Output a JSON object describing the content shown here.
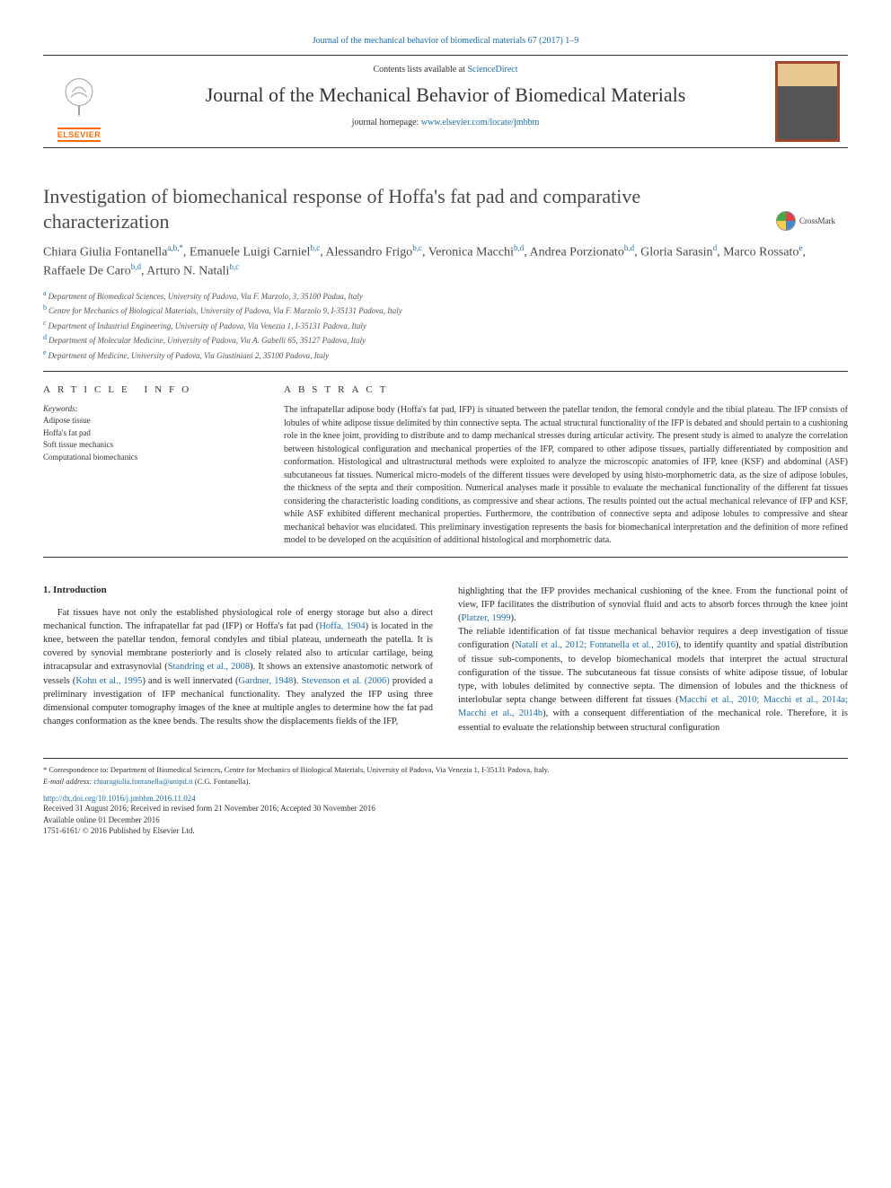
{
  "header": {
    "top_link": "Journal of the mechanical behavior of biomedical materials 67 (2017) 1–9",
    "contents_prefix": "Contents lists available at ",
    "contents_link": "ScienceDirect",
    "journal_name": "Journal of the Mechanical Behavior of Biomedical Materials",
    "homepage_prefix": "journal homepage: ",
    "homepage_url": "www.elsevier.com/locate/jmbbm",
    "publisher_logo": "ELSEVIER",
    "crossmark": "CrossMark"
  },
  "article": {
    "title": "Investigation of biomechanical response of Hoffa's fat pad and comparative characterization",
    "authors_html": "Chiara Giulia Fontanella|a,b,*|, Emanuele Luigi Carniel|b,c|, Alessandro Frigo|b,c|, Veronica Macchi|b,d|, Andrea Porzionato|b,d|, Gloria Sarasin|d|, Marco Rossato|e|, Raffaele De Caro|b,d|, Arturo N. Natali|b,c|",
    "affiliations": [
      {
        "label": "a",
        "text": "Department of Biomedical Sciences, University of Padova, Via F. Marzolo, 3, 35100 Padua, Italy"
      },
      {
        "label": "b",
        "text": "Centre for Mechanics of Biological Materials, University of Padova, Via F. Marzolo 9, I-35131 Padova, Italy"
      },
      {
        "label": "c",
        "text": "Department of Industrial Engineering, University of Padova, Via Venezia 1, I-35131 Padova, Italy"
      },
      {
        "label": "d",
        "text": "Department of Molecular Medicine, University of Padova, Via A. Gabelli 65, 35127 Padova, Italy"
      },
      {
        "label": "e",
        "text": "Department of Medicine, University of Padova, Via Giustiniani 2, 35100 Padova, Italy"
      }
    ]
  },
  "info": {
    "section_label": "ARTICLE INFO",
    "keywords_label": "Keywords:",
    "keywords": [
      "Adipose tissue",
      "Hoffa's fat pad",
      "Soft tissue mechanics",
      "Computational biomechanics"
    ]
  },
  "abstract": {
    "section_label": "ABSTRACT",
    "text": "The infrapatellar adipose body (Hoffa's fat pad, IFP) is situated between the patellar tendon, the femoral condyle and the tibial plateau. The IFP consists of lobules of white adipose tissue delimited by thin connective septa. The actual structural functionality of the IFP is debated and should pertain to a cushioning role in the knee joint, providing to distribute and to damp mechanical stresses during articular activity. The present study is aimed to analyze the correlation between histological configuration and mechanical properties of the IFP, compared to other adipose tissues, partially differentiated by composition and conformation. Histological and ultrastructural methods were exploited to analyze the microscopic anatomies of IFP, knee (KSF) and abdominal (ASF) subcutaneous fat tissues. Numerical micro-models of the different tissues were developed by using histo-morphometric data, as the size of adipose lobules, the thickness of the septa and their composition. Numerical analyses made it possible to evaluate the mechanical functionality of the different fat tissues considering the characteristic loading conditions, as compressive and shear actions. The results pointed out the actual mechanical relevance of IFP and KSF, while ASF exhibited different mechanical properties. Furthermore, the contribution of connective septa and adipose lobules to compressive and shear mechanical behavior was elucidated. This preliminary investigation represents the basis for biomechanical interpretation and the definition of more refined model to be developed on the acquisition of additional histological and morphometric data."
  },
  "body": {
    "section_number": "1.",
    "section_title": "Introduction",
    "col1": "Fat tissues have not only the established physiological role of energy storage but also a direct mechanical function. The infrapatellar fat pad (IFP) or Hoffa's fat pad (|Hoffa, 1904|) is located in the knee, between the patellar tendon, femoral condyles and tibial plateau, underneath the patella. It is covered by synovial membrane posteriorly and is closely related also to articular cartilage, being intracapsular and extrasynovial (|Standring et al., 2008|). It shows an extensive anastomotic network of vessels (|Kohn et al., 1995|) and is well innervated (|Gardner, 1948|). |Stevenson et al. (2006)| provided a preliminary investigation of IFP mechanical functionality. They analyzed the IFP using three dimensional computer tomography images of the knee at multiple angles to determine how the fat pad changes conformation as the knee bends. The results show the displacements fields of the IFP,",
    "col2": "highlighting that the IFP provides mechanical cushioning of the knee. From the functional point of view, IFP facilitates the distribution of synovial fluid and acts to absorb forces through the knee joint (|Platzer, 1999|).\nThe reliable identification of fat tissue mechanical behavior requires a deep investigation of tissue configuration (|Natali et al., 2012; Fontanella et al., 2016|), to identify quantity and spatial distribution of tissue sub-components, to develop biomechanical models that interpret the actual structural configuration of the tissue. The subcutaneous fat tissue consists of white adipose tissue, of lobular type, with lobules delimited by connective septa. The dimension of lobules and the thickness of interlobular septa change between different fat tissues (|Macchi et al., 2010; Macchi et al., 2014a; Macchi et al., 2014b|), with a consequent differentiation of the mechanical role. Therefore, it is essential to evaluate the relationship between structural configuration"
  },
  "footer": {
    "corr_marker": "*",
    "correspondence": "Correspondence to: Department of Biomedical Sciences, Centre for Mechanics of Biological Materials, University of Padova, Via Venezia 1, I-35131 Padova, Italy.",
    "email_label": "E-mail address: ",
    "email": "chiaragiulia.fontanella@unipd.it",
    "email_suffix": " (C.G. Fontanella).",
    "doi": "http://dx.doi.org/10.1016/j.jmbbm.2016.11.024",
    "received": "Received 31 August 2016; Received in revised form 21 November 2016; Accepted 30 November 2016",
    "available": "Available online 01 December 2016",
    "copyright": "1751-6161/ © 2016 Published by Elsevier Ltd."
  },
  "colors": {
    "link": "#1a6fb5",
    "text": "#2a2a2a",
    "elsevier_orange": "#ff6a00",
    "rule": "#333333"
  }
}
